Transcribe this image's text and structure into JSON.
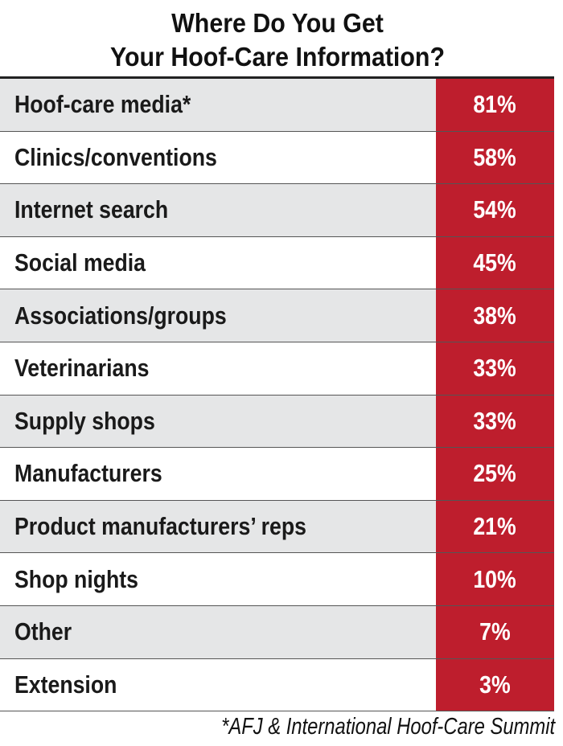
{
  "chart_data": {
    "type": "table",
    "title": [
      "Where Do You Get",
      "Your Hoof-Care Information?"
    ],
    "categories": [
      "Hoof-care media*",
      "Clinics/conventions",
      "Internet search",
      "Social media",
      "Associations/groups",
      "Veterinarians",
      "Supply shops",
      "Manufacturers",
      "Product manufacturers’ reps",
      "Shop nights",
      "Other",
      "Extension"
    ],
    "values": [
      81,
      58,
      54,
      45,
      38,
      33,
      33,
      25,
      21,
      10,
      7,
      3
    ],
    "labels": [
      "81%",
      "58%",
      "54%",
      "45%",
      "38%",
      "33%",
      "33%",
      "25%",
      "21%",
      "10%",
      "7%",
      "3%"
    ],
    "footnote": "*AFJ & International Hoof-Care Summit",
    "colors": {
      "value_column": "#be1e2d",
      "alt_row": "#e5e6e7"
    }
  }
}
